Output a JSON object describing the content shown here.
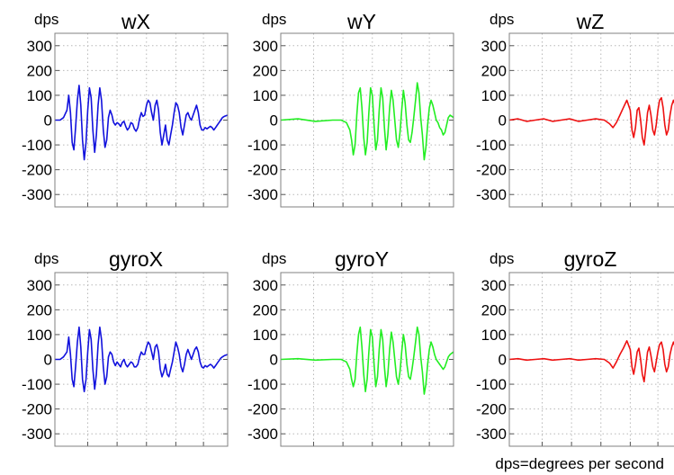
{
  "footnote": "dps=degrees per second",
  "colors": {
    "blue": "#1111dd",
    "green": "#22ee22",
    "red": "#ee1111",
    "grid": "#b8b8b8",
    "frame": "#808080"
  },
  "chart_data": [
    {
      "type": "line",
      "title": "wX",
      "ylabel": "dps",
      "ylim": [
        -350,
        350
      ],
      "yticks": [
        300,
        200,
        100,
        0,
        -100,
        -200,
        -300
      ],
      "yticklabels": [
        "300",
        "200",
        "100",
        "0",
        "-100",
        "-200",
        "-300"
      ],
      "xlim": [
        0,
        100
      ],
      "grid": true,
      "color": "#1111dd",
      "x": [
        0,
        3,
        5,
        7,
        8,
        9,
        10,
        11,
        12,
        13,
        14,
        15,
        16,
        17,
        18,
        19,
        20,
        21,
        22,
        23,
        24,
        25,
        26,
        27,
        28,
        29,
        30,
        31,
        32,
        33,
        34,
        35,
        36,
        37,
        38,
        39,
        40,
        41,
        42,
        43,
        44,
        45,
        46,
        47,
        48,
        49,
        50,
        51,
        52,
        53,
        54,
        55,
        56,
        57,
        58,
        59,
        60,
        61,
        62,
        63,
        64,
        65,
        66,
        67,
        68,
        69,
        70,
        71,
        72,
        73,
        74,
        75,
        76,
        77,
        78,
        79,
        80,
        81,
        82,
        83,
        84,
        85,
        86,
        87,
        88,
        89,
        90,
        91,
        92,
        93,
        94,
        95,
        96,
        97,
        98,
        100
      ],
      "y": [
        0,
        0,
        10,
        40,
        100,
        30,
        -90,
        -120,
        -30,
        80,
        140,
        60,
        -80,
        -160,
        -90,
        40,
        130,
        90,
        -40,
        -130,
        -60,
        60,
        130,
        80,
        -40,
        -110,
        -80,
        10,
        40,
        20,
        -10,
        -20,
        -10,
        -15,
        -25,
        -10,
        -5,
        -25,
        -40,
        -30,
        -10,
        -15,
        -35,
        -45,
        -30,
        5,
        30,
        15,
        20,
        60,
        80,
        70,
        30,
        0,
        60,
        80,
        40,
        -50,
        -100,
        -60,
        -20,
        -80,
        -100,
        -60,
        -20,
        30,
        70,
        60,
        30,
        -30,
        -60,
        -20,
        20,
        30,
        10,
        0,
        20,
        40,
        60,
        30,
        -20,
        -40,
        -40,
        -30,
        -35,
        -30,
        -25,
        -30,
        -40,
        -30,
        -20,
        -10,
        0,
        10,
        15,
        20
      ]
    },
    {
      "type": "line",
      "title": "wY",
      "ylabel": "dps",
      "ylim": [
        -350,
        350
      ],
      "yticks": [
        300,
        200,
        100,
        0,
        -100,
        -200,
        -300
      ],
      "yticklabels": [
        "300",
        "200",
        "100",
        "0",
        "-100",
        "-200",
        "-300"
      ],
      "xlim": [
        0,
        100
      ],
      "grid": true,
      "color": "#22ee22",
      "x": [
        0,
        10,
        20,
        30,
        35,
        38,
        40,
        41,
        42,
        43,
        44,
        45,
        46,
        47,
        48,
        49,
        50,
        51,
        52,
        53,
        54,
        55,
        56,
        57,
        58,
        59,
        60,
        61,
        62,
        63,
        64,
        65,
        66,
        67,
        68,
        69,
        70,
        71,
        72,
        73,
        74,
        75,
        76,
        77,
        78,
        79,
        80,
        81,
        82,
        83,
        84,
        85,
        86,
        87,
        88,
        89,
        90,
        91,
        92,
        93,
        94,
        95,
        96,
        97,
        98,
        100
      ],
      "y": [
        0,
        5,
        -5,
        0,
        0,
        -10,
        -40,
        -80,
        -140,
        -100,
        20,
        110,
        130,
        50,
        -70,
        -140,
        -90,
        30,
        130,
        100,
        -20,
        -120,
        -80,
        40,
        130,
        90,
        -30,
        -120,
        -60,
        50,
        120,
        80,
        0,
        -80,
        -110,
        -50,
        40,
        120,
        70,
        -20,
        -80,
        -90,
        -50,
        10,
        80,
        150,
        110,
        10,
        -60,
        -160,
        -110,
        -20,
        50,
        80,
        60,
        30,
        0,
        -10,
        -30,
        -40,
        -60,
        -50,
        -20,
        10,
        20,
        10
      ]
    },
    {
      "type": "line",
      "title": "wZ",
      "ylabel": "dps",
      "ylim": [
        -350,
        350
      ],
      "yticks": [
        300,
        200,
        100,
        0,
        -100,
        -200,
        -300
      ],
      "yticklabels": [
        "300",
        "200",
        "100",
        "0",
        "-100",
        "-200",
        "-300"
      ],
      "xlim": [
        0,
        100
      ],
      "grid": true,
      "color": "#ee1111",
      "x": [
        0,
        5,
        10,
        15,
        20,
        25,
        30,
        35,
        40,
        45,
        50,
        55,
        58,
        60,
        62,
        64,
        66,
        68,
        70,
        71,
        72,
        73,
        74,
        75,
        76,
        77,
        78,
        79,
        80,
        81,
        82,
        83,
        84,
        85,
        86,
        87,
        88,
        89,
        90,
        91,
        92,
        93,
        94,
        95,
        96,
        97,
        98,
        99,
        100
      ],
      "y": [
        0,
        5,
        -5,
        0,
        5,
        -5,
        0,
        5,
        -5,
        0,
        5,
        0,
        -15,
        -30,
        -10,
        20,
        50,
        80,
        40,
        -40,
        -70,
        -30,
        40,
        50,
        0,
        -70,
        -100,
        -40,
        30,
        60,
        20,
        -40,
        -60,
        -20,
        40,
        80,
        90,
        50,
        -20,
        -60,
        -40,
        20,
        60,
        80,
        60,
        -30,
        -80,
        -70,
        -60
      ]
    },
    {
      "type": "line",
      "title": "gyroX",
      "ylabel": "dps",
      "ylim": [
        -350,
        350
      ],
      "yticks": [
        300,
        200,
        100,
        0,
        -100,
        -200,
        -300
      ],
      "yticklabels": [
        "300",
        "200",
        "100",
        "0",
        "-100",
        "-200",
        "-300"
      ],
      "xlim": [
        0,
        100
      ],
      "grid": true,
      "color": "#1111dd",
      "x": [
        0,
        3,
        5,
        7,
        8,
        9,
        10,
        11,
        12,
        13,
        14,
        15,
        16,
        17,
        18,
        19,
        20,
        21,
        22,
        23,
        24,
        25,
        26,
        27,
        28,
        29,
        30,
        31,
        32,
        33,
        34,
        35,
        36,
        37,
        38,
        39,
        40,
        41,
        42,
        43,
        44,
        45,
        46,
        47,
        48,
        49,
        50,
        51,
        52,
        53,
        54,
        55,
        56,
        57,
        58,
        59,
        60,
        61,
        62,
        63,
        64,
        65,
        66,
        67,
        68,
        69,
        70,
        71,
        72,
        73,
        74,
        75,
        76,
        77,
        78,
        79,
        80,
        81,
        82,
        83,
        84,
        85,
        86,
        87,
        88,
        89,
        90,
        91,
        92,
        93,
        94,
        95,
        96,
        97,
        98,
        100
      ],
      "y": [
        0,
        0,
        10,
        30,
        90,
        20,
        -80,
        -110,
        -30,
        70,
        130,
        50,
        -80,
        -130,
        -80,
        30,
        120,
        80,
        -40,
        -120,
        -60,
        60,
        130,
        80,
        -30,
        -100,
        -70,
        10,
        30,
        20,
        -10,
        -25,
        -10,
        -20,
        -30,
        -10,
        0,
        -20,
        -30,
        -20,
        -10,
        -15,
        -30,
        -30,
        -20,
        10,
        30,
        20,
        20,
        50,
        70,
        60,
        30,
        0,
        50,
        60,
        30,
        -40,
        -70,
        -50,
        -20,
        -60,
        -70,
        -40,
        -10,
        30,
        70,
        50,
        20,
        -30,
        -50,
        -20,
        20,
        40,
        20,
        0,
        20,
        40,
        50,
        30,
        -10,
        -30,
        -35,
        -25,
        -30,
        -25,
        -20,
        -25,
        -35,
        -25,
        -15,
        -5,
        5,
        10,
        15,
        20
      ]
    },
    {
      "type": "line",
      "title": "gyroY",
      "ylabel": "dps",
      "ylim": [
        -350,
        350
      ],
      "yticks": [
        300,
        200,
        100,
        0,
        -100,
        -200,
        -300
      ],
      "yticklabels": [
        "300",
        "200",
        "100",
        "0",
        "-100",
        "-200",
        "-300"
      ],
      "xlim": [
        0,
        100
      ],
      "grid": true,
      "color": "#22ee22",
      "x": [
        0,
        10,
        20,
        30,
        35,
        38,
        40,
        41,
        42,
        43,
        44,
        45,
        46,
        47,
        48,
        49,
        50,
        51,
        52,
        53,
        54,
        55,
        56,
        57,
        58,
        59,
        60,
        61,
        62,
        63,
        64,
        65,
        66,
        67,
        68,
        69,
        70,
        71,
        72,
        73,
        74,
        75,
        76,
        77,
        78,
        79,
        80,
        81,
        82,
        83,
        84,
        85,
        86,
        87,
        88,
        89,
        90,
        91,
        92,
        93,
        94,
        95,
        96,
        97,
        98,
        100
      ],
      "y": [
        0,
        3,
        -3,
        0,
        0,
        -10,
        -40,
        -80,
        -110,
        -80,
        20,
        100,
        130,
        50,
        -60,
        -130,
        -80,
        30,
        120,
        90,
        -20,
        -110,
        -70,
        40,
        120,
        80,
        -30,
        -110,
        -60,
        40,
        110,
        70,
        0,
        -70,
        -100,
        -50,
        30,
        100,
        60,
        -20,
        -70,
        -80,
        -40,
        10,
        70,
        130,
        100,
        10,
        -50,
        -140,
        -100,
        -20,
        40,
        70,
        50,
        20,
        0,
        -10,
        -20,
        -30,
        -40,
        -30,
        -10,
        10,
        20,
        30
      ]
    },
    {
      "type": "line",
      "title": "gyroZ",
      "ylabel": "dps",
      "ylim": [
        -350,
        350
      ],
      "yticks": [
        300,
        200,
        100,
        0,
        -100,
        -200,
        -300
      ],
      "yticklabels": [
        "300",
        "200",
        "100",
        "0",
        "-100",
        "-200",
        "-300"
      ],
      "xlim": [
        0,
        100
      ],
      "grid": true,
      "color": "#ee1111",
      "x": [
        0,
        5,
        10,
        15,
        20,
        25,
        30,
        35,
        40,
        45,
        50,
        55,
        58,
        60,
        62,
        64,
        66,
        68,
        70,
        71,
        72,
        73,
        74,
        75,
        76,
        77,
        78,
        79,
        80,
        81,
        82,
        83,
        84,
        85,
        86,
        87,
        88,
        89,
        90,
        91,
        92,
        93,
        94,
        95,
        96,
        97,
        98,
        99,
        100
      ],
      "y": [
        0,
        3,
        -3,
        0,
        3,
        -3,
        0,
        3,
        -3,
        0,
        3,
        0,
        -15,
        -35,
        -10,
        20,
        45,
        75,
        40,
        -30,
        -60,
        -20,
        30,
        45,
        0,
        -60,
        -90,
        -30,
        30,
        50,
        15,
        -30,
        -50,
        -10,
        30,
        60,
        70,
        40,
        -20,
        -50,
        -30,
        20,
        50,
        70,
        50,
        -20,
        -70,
        -60,
        -50
      ]
    }
  ]
}
